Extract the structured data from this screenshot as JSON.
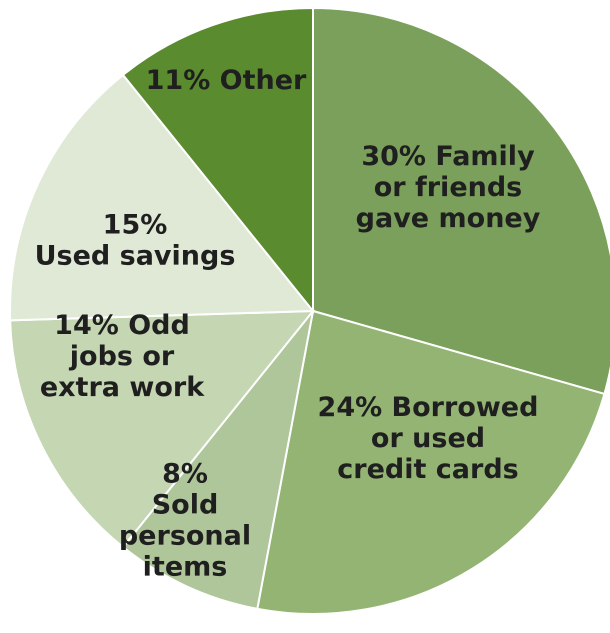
{
  "chart_data": {
    "type": "pie",
    "title": "",
    "categories": [
      "Family or friends gave money",
      "Borrowed or used credit cards",
      "Sold personal items",
      "Odd jobs or extra work",
      "Used savings",
      "Other"
    ],
    "values": [
      30,
      24,
      8,
      14,
      15,
      11
    ],
    "colors": [
      "#7aa05b",
      "#94b474",
      "#aec69a",
      "#c4d6b2",
      "#e0e9d6",
      "#5b8b2f"
    ],
    "labels": [
      [
        "30% Family",
        "or friends",
        "gave money"
      ],
      [
        "24% Borrowed",
        "or used",
        "credit cards"
      ],
      [
        "8%",
        "Sold",
        "personal",
        "items"
      ],
      [
        "14% Odd",
        "jobs or",
        "extra work"
      ],
      [
        "15%",
        "Used savings"
      ],
      [
        "11% Other"
      ]
    ],
    "start": "top",
    "direction": "clockwise",
    "legend": "none"
  }
}
